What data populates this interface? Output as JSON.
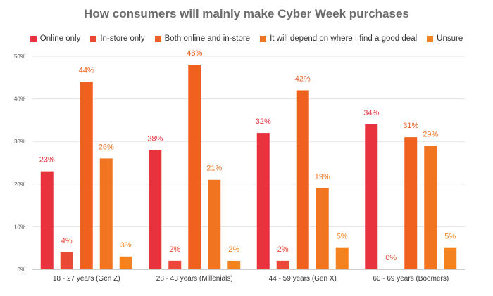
{
  "chart_data": {
    "type": "bar",
    "title": "How consumers will mainly make Cyber Week purchases",
    "categories": [
      "18 - 27 years (Gen Z)",
      "28 - 43 years (Millenials)",
      "44 - 59 years (Gen X)",
      "60 - 69 years (Boomers)"
    ],
    "series": [
      {
        "name": "Online only",
        "color": "#e8333f",
        "values": [
          23,
          28,
          32,
          34
        ],
        "labels": [
          "23%",
          "28%",
          "32%",
          "34%"
        ]
      },
      {
        "name": "In-store only",
        "color": "#ea4a35",
        "values": [
          4,
          2,
          2,
          0
        ],
        "labels": [
          "4%",
          "2%",
          "2%",
          "0%"
        ]
      },
      {
        "name": "Both online and in-store",
        "color": "#f0611f",
        "values": [
          44,
          48,
          42,
          31
        ],
        "labels": [
          "44%",
          "48%",
          "42%",
          "31%"
        ]
      },
      {
        "name": "It will depend on where I find a good deal",
        "color": "#f17521",
        "values": [
          26,
          21,
          19,
          29
        ],
        "labels": [
          "26%",
          "21%",
          "19%",
          "29%"
        ]
      },
      {
        "name": "Unsure",
        "color": "#f4831f",
        "values": [
          3,
          2,
          5,
          5
        ],
        "labels": [
          "3%",
          "2%",
          "5%",
          "5%"
        ]
      }
    ],
    "ylim": [
      0,
      50
    ],
    "yticks": [
      "0%",
      "10%",
      "20%",
      "30%",
      "40%",
      "50%"
    ],
    "grid": true,
    "legend_position": "top"
  }
}
